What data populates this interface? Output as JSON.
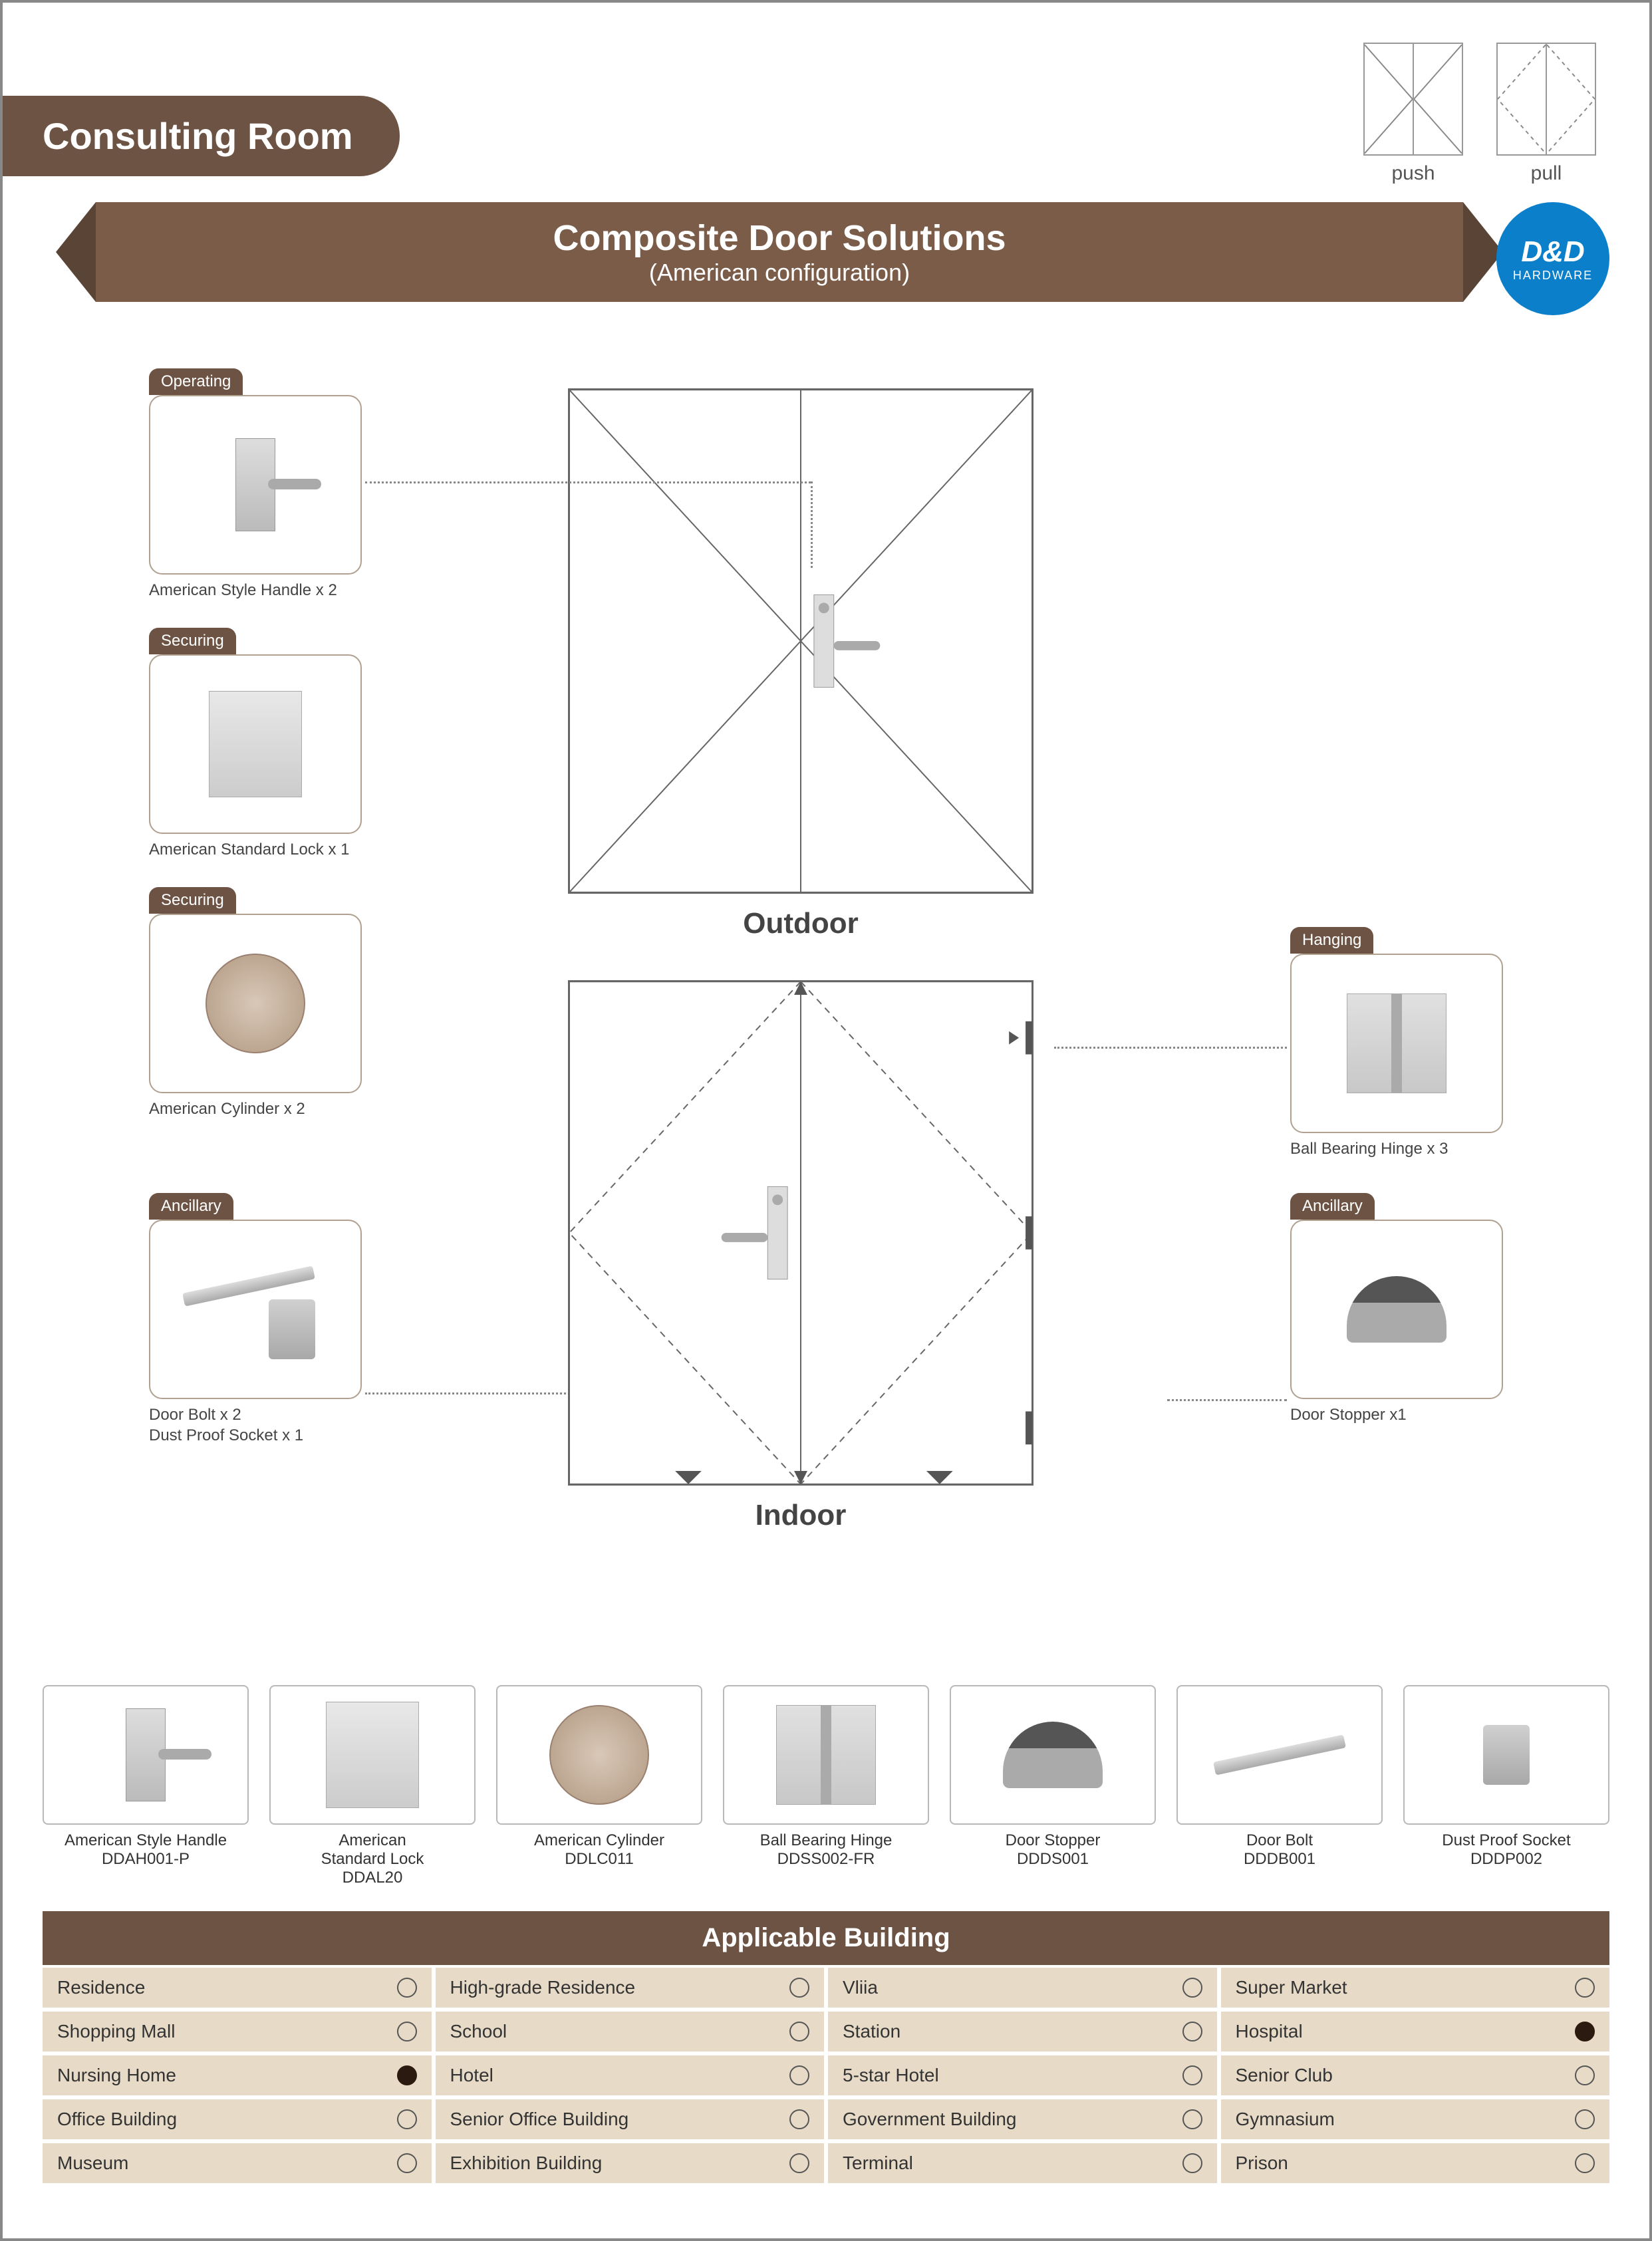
{
  "page_title": "Consulting Room",
  "push_pull": {
    "push": "push",
    "pull": "pull"
  },
  "banner": {
    "title": "Composite Door Solutions",
    "subtitle": "(American configuration)"
  },
  "logo": {
    "main": "D&D",
    "sub": "HARDWARE"
  },
  "door_labels": {
    "outdoor": "Outdoor",
    "indoor": "Indoor"
  },
  "components": {
    "operating": {
      "tag": "Operating",
      "label": "American Style Handle x 2"
    },
    "securing1": {
      "tag": "Securing",
      "label": "American Standard Lock x 1"
    },
    "securing2": {
      "tag": "Securing",
      "label": "American Cylinder x 2"
    },
    "ancillary1": {
      "tag": "Ancillary",
      "label": "Door Bolt x 2\nDust Proof Socket x 1"
    },
    "hanging": {
      "tag": "Hanging",
      "label": "Ball Bearing Hinge x 3"
    },
    "ancillary2": {
      "tag": "Ancillary",
      "label": "Door Stopper x1"
    }
  },
  "thumbnails": [
    {
      "name": "American Style Handle",
      "code": "DDAH001-P",
      "icon": "handle"
    },
    {
      "name": "American\nStandard Lock",
      "code": "DDAL20",
      "icon": "lock"
    },
    {
      "name": "American Cylinder",
      "code": "DDLC011",
      "icon": "cyl"
    },
    {
      "name": "Ball Bearing Hinge",
      "code": "DDSS002-FR",
      "icon": "hinge"
    },
    {
      "name": "Door Stopper",
      "code": "DDDS001",
      "icon": "stopper"
    },
    {
      "name": "Door Bolt",
      "code": "DDDB001",
      "icon": "bolt"
    },
    {
      "name": "Dust Proof Socket",
      "code": "DDDP002",
      "icon": "socket"
    }
  ],
  "applicable": {
    "header": "Applicable Building",
    "items": [
      {
        "label": "Residence",
        "selected": false
      },
      {
        "label": "High-grade Residence",
        "selected": false
      },
      {
        "label": "Vliia",
        "selected": false
      },
      {
        "label": "Super Market",
        "selected": false
      },
      {
        "label": "Shopping Mall",
        "selected": false
      },
      {
        "label": "School",
        "selected": false
      },
      {
        "label": "Station",
        "selected": false
      },
      {
        "label": "Hospital",
        "selected": true
      },
      {
        "label": "Nursing Home",
        "selected": true
      },
      {
        "label": "Hotel",
        "selected": false
      },
      {
        "label": "5-star Hotel",
        "selected": false
      },
      {
        "label": "Senior Club",
        "selected": false
      },
      {
        "label": "Office Building",
        "selected": false
      },
      {
        "label": "Senior Office Building",
        "selected": false
      },
      {
        "label": "Government Building",
        "selected": false
      },
      {
        "label": "Gymnasium",
        "selected": false
      },
      {
        "label": "Museum",
        "selected": false
      },
      {
        "label": "Exhibition Building",
        "selected": false
      },
      {
        "label": "Terminal",
        "selected": false
      },
      {
        "label": "Prison",
        "selected": false
      }
    ]
  },
  "colors": {
    "brand_brown": "#6d5344",
    "banner_brown": "#7a5c48",
    "logo_blue": "#0b7fc9",
    "tan_cell": "#e7dbc8"
  }
}
